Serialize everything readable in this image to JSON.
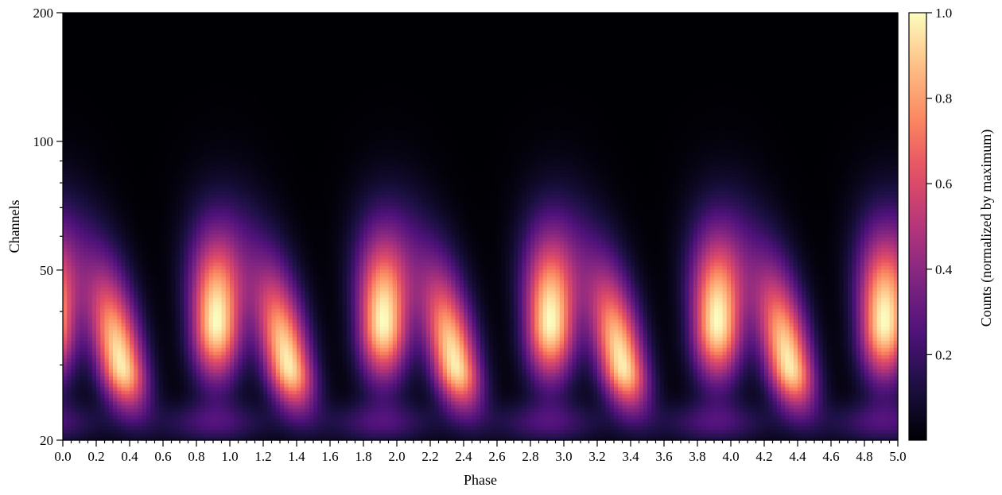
{
  "chart_data": {
    "type": "heatmap",
    "title": "",
    "xlabel": "Phase",
    "ylabel": "Channels",
    "xlim": [
      0.0,
      5.0
    ],
    "ylim": [
      20,
      200
    ],
    "yscale": "log",
    "x_ticks": [
      "0.0",
      "0.2",
      "0.4",
      "0.6",
      "0.8",
      "1.0",
      "1.2",
      "1.4",
      "1.6",
      "1.8",
      "2.0",
      "2.2",
      "2.4",
      "2.6",
      "2.8",
      "3.0",
      "3.2",
      "3.4",
      "3.6",
      "3.8",
      "4.0",
      "4.2",
      "4.4",
      "4.6",
      "4.8",
      "5.0"
    ],
    "y_ticks": [
      {
        "value": 20,
        "label": "20"
      },
      {
        "value": 50,
        "label": "50"
      },
      {
        "value": 100,
        "label": "100"
      },
      {
        "value": 200,
        "label": "200"
      }
    ],
    "colormap": "magma",
    "colorbar": {
      "label": "Counts (normalized by maximum)",
      "range": [
        0.0,
        1.0
      ],
      "ticks": [
        "0.2",
        "0.4",
        "0.6",
        "0.8",
        "1.0"
      ]
    },
    "pulse_components": [
      {
        "name": "",
        "phase_center": 0.92,
        "channel_peak": 38,
        "peak_value": 1.0
      },
      {
        "name": "",
        "phase_center": 0.35,
        "channel_peak": 30,
        "peak_value": 0.97
      }
    ],
    "period_in_phase": 1.0
  }
}
